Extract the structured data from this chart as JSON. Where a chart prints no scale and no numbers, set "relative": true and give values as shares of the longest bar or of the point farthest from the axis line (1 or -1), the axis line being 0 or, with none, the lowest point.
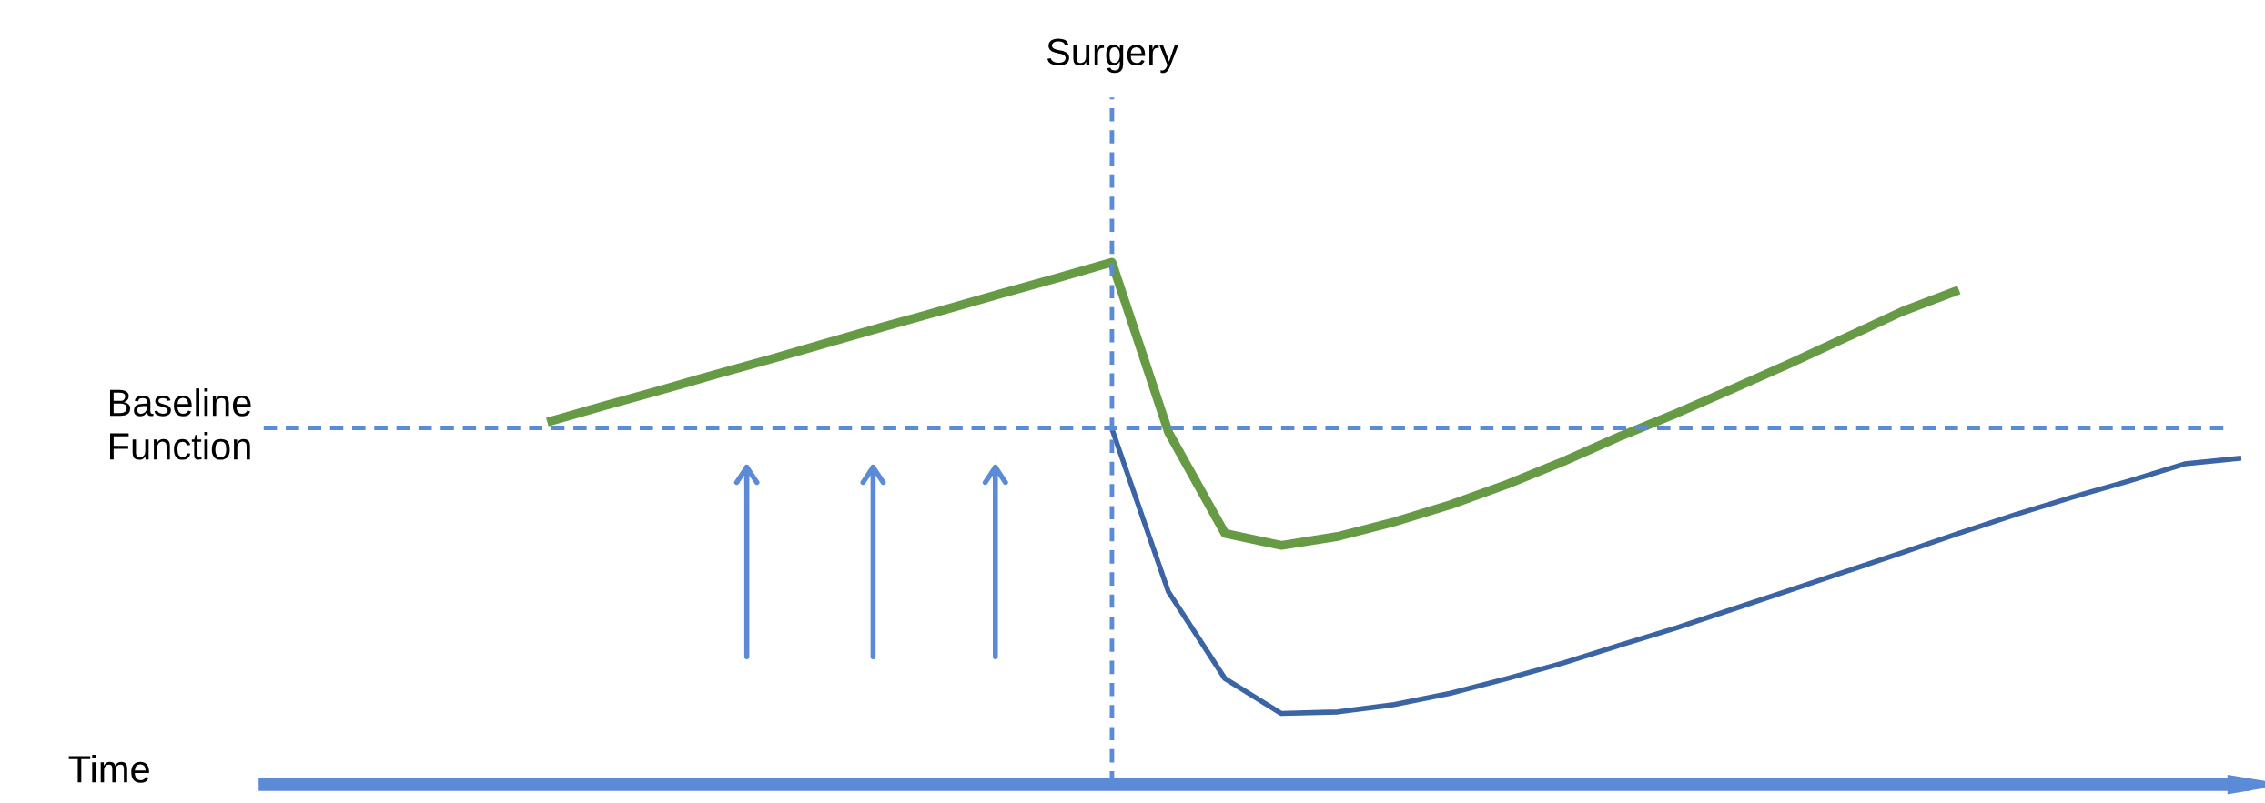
{
  "chart_data": {
    "type": "line",
    "relative": true,
    "xlabel": "Time",
    "annotations": [
      "Surgery"
    ],
    "categories": [
      null,
      null,
      null,
      null,
      null,
      null,
      null,
      null,
      null,
      null,
      null,
      null,
      null,
      null,
      null,
      null,
      null,
      null,
      null,
      null,
      null,
      null,
      null,
      null,
      null,
      null,
      null,
      null,
      null,
      null,
      null,
      null,
      null,
      null,
      null,
      null
    ],
    "series": [
      {
        "color": "#679a45",
        "values": [
          null,
          null,
          null,
          null,
          null,
          0.694,
          0.725,
          0.755,
          0.786,
          0.816,
          0.847,
          0.878,
          0.908,
          0.939,
          0.969,
          1.0,
          0.675,
          0.481,
          0.458,
          0.475,
          0.503,
          0.536,
          0.575,
          0.619,
          0.667,
          0.711,
          0.758,
          0.806,
          0.856,
          0.906,
          0.947,
          null,
          null,
          null,
          null,
          null
        ]
      },
      {
        "color": "#3b64a4",
        "values": [
          null,
          null,
          null,
          null,
          null,
          null,
          null,
          null,
          null,
          null,
          null,
          null,
          null,
          null,
          null,
          0.681,
          0.369,
          0.203,
          0.136,
          0.139,
          0.153,
          0.175,
          0.203,
          0.233,
          0.267,
          0.3,
          0.336,
          0.372,
          0.408,
          0.444,
          0.481,
          0.517,
          0.55,
          0.581,
          0.614,
          0.625
        ]
      }
    ],
    "ref_lines": [
      {
        "axis": "y",
        "value": 0.683,
        "label": "Baseline Function",
        "color": "#5b8bd6",
        "line_style": "dashed"
      }
    ]
  }
}
